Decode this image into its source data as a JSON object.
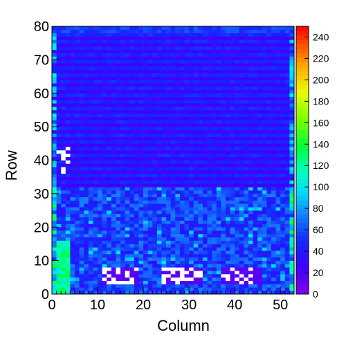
{
  "chart_data": {
    "type": "heatmap",
    "title": "",
    "xlabel": "Column",
    "ylabel": "Row",
    "xlim": [
      0,
      53
    ],
    "ylim": [
      0,
      80
    ],
    "x_ticks": [
      0,
      10,
      20,
      30,
      40,
      50
    ],
    "y_ticks": [
      0,
      10,
      20,
      30,
      40,
      50,
      60,
      70,
      80
    ],
    "colorbar": {
      "min": 0,
      "max": 250,
      "ticks": [
        0,
        20,
        40,
        60,
        80,
        100,
        120,
        140,
        160,
        180,
        200,
        220,
        240
      ]
    },
    "colormap": "rainbow (violet-blue-cyan-green-yellow-orange-red)",
    "grid": false,
    "regions": [
      {
        "rows": [
          0,
          32
        ],
        "cols": [
          0,
          53
        ],
        "description": "lower region, higher values",
        "approx_value": 55
      },
      {
        "rows": [
          32,
          80
        ],
        "cols": [
          0,
          53
        ],
        "description": "upper region, alternating stripes",
        "approx_value": 35
      },
      {
        "rows": [
          0,
          16
        ],
        "cols": [
          1,
          4
        ],
        "description": "green patch at left edge",
        "approx_value": 120
      },
      {
        "rows": [
          3,
          8
        ],
        "cols": [
          11,
          19
        ],
        "description": "low-value block with empty cells",
        "approx_value": 10
      },
      {
        "rows": [
          3,
          8
        ],
        "cols": [
          24,
          33
        ],
        "description": "low-value block with empty cells",
        "approx_value": 10
      },
      {
        "rows": [
          3,
          8
        ],
        "cols": [
          37,
          46
        ],
        "description": "low-value block with empty cells",
        "approx_value": 10
      }
    ]
  }
}
